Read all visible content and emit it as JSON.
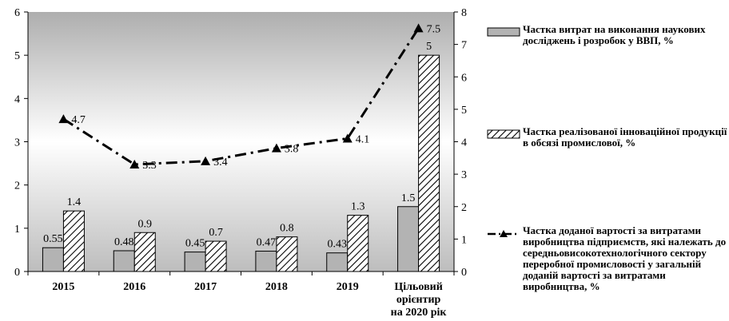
{
  "chart_data": {
    "type": "bar",
    "categories": [
      "2015",
      "2016",
      "2017",
      "2018",
      "2019",
      "Цільовий орієнтир на 2020 рік"
    ],
    "y_left_lim": [
      0,
      6
    ],
    "y_left_ticks": [
      "0",
      "1",
      "2",
      "3",
      "4",
      "5",
      "6"
    ],
    "y_right_lim": [
      0,
      8
    ],
    "y_right_ticks": [
      "0",
      "1",
      "2",
      "3",
      "4",
      "5",
      "6",
      "7",
      "8"
    ],
    "series": [
      {
        "name": "Частка витрат на виконання наукових досліджень і розробок у ВВП, %",
        "type": "bar",
        "axis": "left",
        "pattern": "solid-gray",
        "values": [
          0.55,
          0.48,
          0.45,
          0.47,
          0.43,
          1.5
        ],
        "labels": [
          "0.55",
          "0.48",
          "0.45",
          "0.47",
          "0.43",
          "1.5"
        ]
      },
      {
        "name": "Частка реалізованої інноваційної продукції в обсязі промислової, %",
        "type": "bar",
        "axis": "left",
        "pattern": "diagonal-hatch",
        "values": [
          1.4,
          0.9,
          0.7,
          0.8,
          1.3,
          5
        ],
        "labels": [
          "1.4",
          "0.9",
          "0.7",
          "0.8",
          "1.3",
          "5"
        ]
      },
      {
        "name": "Частка доданої вартості за витратами виробництва підприємств, які належать до середньовисокотехнологічного сектору переробної промисловості у загальній доданій вартості за витратами виробництва, %",
        "type": "line",
        "axis": "right",
        "line_style": "dash-dot",
        "marker": "triangle",
        "values": [
          4.7,
          3.3,
          3.4,
          3.8,
          4.1,
          7.5
        ],
        "labels": [
          "4.7",
          "3.3",
          "3.4",
          "3.8",
          "4.1",
          "7.5"
        ]
      }
    ],
    "legend_position": "right",
    "background": "gradient gray-white-gray"
  },
  "colors": {
    "bar_gray": "#b3b3b3",
    "line": "#000000",
    "axis": "#000000"
  }
}
